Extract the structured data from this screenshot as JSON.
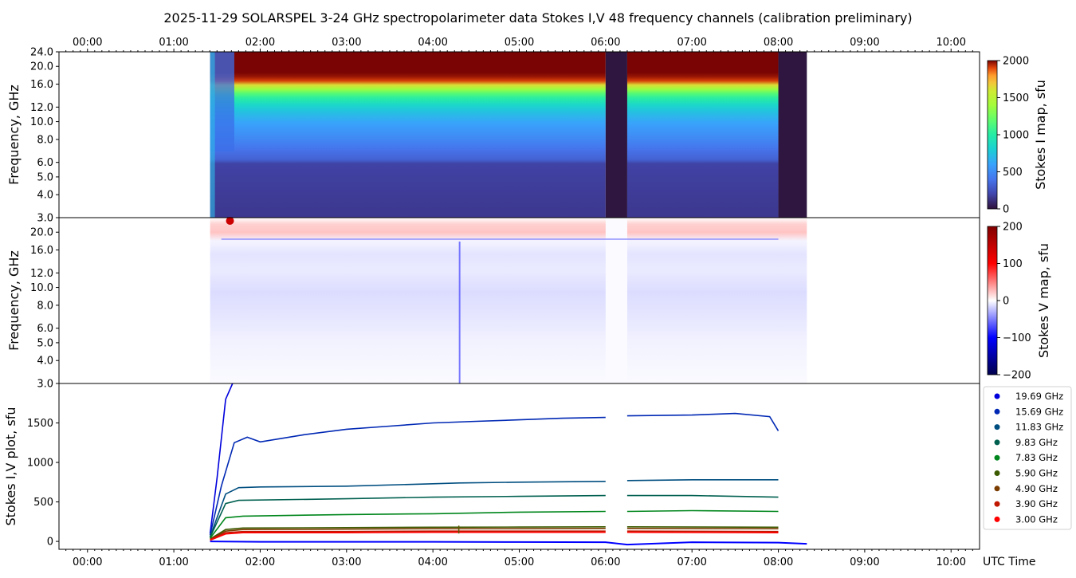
{
  "title": "2025-11-29  SOLARSPEL  3-24 GHz spectropolarimeter data   Stokes I,V   48 frequency channels   (calibration preliminary)",
  "x_unit_label": "UTC Time",
  "time_ticks": [
    "00:00",
    "01:00",
    "02:00",
    "03:00",
    "04:00",
    "05:00",
    "06:00",
    "07:00",
    "08:00",
    "09:00",
    "10:00"
  ],
  "chart_data": [
    {
      "type": "heatmap",
      "name": "stokes_i_map",
      "ylabel": "Frequency, GHz",
      "yticks": [
        "3.0",
        "4.0",
        "5.0",
        "6.0",
        "8.0",
        "10.0",
        "12.0",
        "16.0",
        "20.0",
        "24.0"
      ],
      "ylim_ghz": [
        3.0,
        24.0
      ],
      "xlim_hours": [
        -0.33,
        10.33
      ],
      "data_time_range_hours": [
        1.42,
        8.33
      ],
      "gaps_hours": [
        [
          6.0,
          6.25
        ],
        [
          8.0,
          8.33
        ]
      ],
      "colorbar": {
        "label": "Stokes I map, sfu",
        "ticks": [
          "2000",
          "1500",
          "1000",
          "500",
          "0"
        ],
        "range": [
          0,
          2000
        ],
        "colormap": "turbo"
      },
      "profile_sfu": [
        {
          "freq": 3.0,
          "value": 150
        },
        {
          "freq": 5.9,
          "value": 190
        },
        {
          "freq": 6.0,
          "value": 300
        },
        {
          "freq": 8.0,
          "value": 480
        },
        {
          "freq": 10.0,
          "value": 620
        },
        {
          "freq": 12.0,
          "value": 800
        },
        {
          "freq": 14.0,
          "value": 1100
        },
        {
          "freq": 15.5,
          "value": 1500
        },
        {
          "freq": 16.5,
          "value": 1900
        },
        {
          "freq": 18.0,
          "value": 2000
        },
        {
          "freq": 24.0,
          "value": 2000
        }
      ]
    },
    {
      "type": "heatmap",
      "name": "stokes_v_map",
      "ylabel": "Frequency, GHz",
      "yticks": [
        "3.0",
        "4.0",
        "5.0",
        "6.0",
        "8.0",
        "10.0",
        "12.0",
        "16.0",
        "20.0"
      ],
      "ylim_ghz": [
        3.0,
        24.0
      ],
      "colorbar": {
        "label": "Stokes V map, sfu",
        "ticks": [
          "200",
          "100",
          "0",
          "−100",
          "−200"
        ],
        "range": [
          -200,
          200
        ],
        "colormap": "seismic"
      }
    },
    {
      "type": "line",
      "name": "stokes_iv_plot",
      "ylabel": "Stokes I,V plot, sfu",
      "yticks": [
        "0",
        "500",
        "1000",
        "1500"
      ],
      "ylim": [
        -100,
        2000
      ],
      "xlim_hours": [
        -0.33,
        10.33
      ],
      "series": [
        {
          "name": "19.69 GHz",
          "color": "#0000dd",
          "points": [
            [
              1.42,
              100
            ],
            [
              1.5,
              800
            ],
            [
              1.6,
              1800
            ],
            [
              1.68,
              2000
            ]
          ]
        },
        {
          "name": "15.69 GHz",
          "color": "#0028b4",
          "points": [
            [
              1.42,
              80
            ],
            [
              1.55,
              700
            ],
            [
              1.7,
              1250
            ],
            [
              1.85,
              1320
            ],
            [
              2.0,
              1260
            ],
            [
              2.5,
              1350
            ],
            [
              3.0,
              1420
            ],
            [
              3.5,
              1460
            ],
            [
              4.0,
              1500
            ],
            [
              4.5,
              1520
            ],
            [
              5.0,
              1540
            ],
            [
              5.5,
              1560
            ],
            [
              6.0,
              1570
            ],
            [
              6.25,
              1590
            ],
            [
              7.0,
              1600
            ],
            [
              7.5,
              1620
            ],
            [
              7.9,
              1580
            ],
            [
              8.0,
              1400
            ]
          ]
        },
        {
          "name": "11.83 GHz",
          "color": "#004e80",
          "points": [
            [
              1.42,
              60
            ],
            [
              1.6,
              600
            ],
            [
              1.75,
              680
            ],
            [
              2.0,
              690
            ],
            [
              3.0,
              700
            ],
            [
              4.0,
              730
            ],
            [
              4.3,
              740
            ],
            [
              5.0,
              750
            ],
            [
              6.0,
              760
            ],
            [
              6.25,
              770
            ],
            [
              7.0,
              780
            ],
            [
              8.0,
              780
            ]
          ]
        },
        {
          "name": "9.83 GHz",
          "color": "#006050",
          "points": [
            [
              1.42,
              50
            ],
            [
              1.6,
              480
            ],
            [
              1.75,
              520
            ],
            [
              3.0,
              540
            ],
            [
              4.0,
              560
            ],
            [
              5.0,
              570
            ],
            [
              6.0,
              580
            ],
            [
              6.25,
              580
            ],
            [
              7.0,
              580
            ],
            [
              8.0,
              560
            ]
          ]
        },
        {
          "name": "7.83 GHz",
          "color": "#00861c",
          "points": [
            [
              1.42,
              40
            ],
            [
              1.6,
              300
            ],
            [
              1.8,
              320
            ],
            [
              3.0,
              340
            ],
            [
              4.0,
              350
            ],
            [
              5.0,
              370
            ],
            [
              6.0,
              380
            ],
            [
              6.25,
              380
            ],
            [
              7.0,
              390
            ],
            [
              8.0,
              380
            ]
          ]
        },
        {
          "name": "5.90 GHz",
          "color": "#3c5a00",
          "points": [
            [
              1.42,
              30
            ],
            [
              1.6,
              150
            ],
            [
              1.8,
              170
            ],
            [
              3.0,
              175
            ],
            [
              4.0,
              180
            ],
            [
              5.0,
              182
            ],
            [
              6.0,
              185
            ],
            [
              6.25,
              185
            ],
            [
              8.0,
              180
            ]
          ]
        },
        {
          "name": "4.90 GHz",
          "color": "#7a3c00",
          "points": [
            [
              1.42,
              25
            ],
            [
              1.6,
              130
            ],
            [
              1.8,
              150
            ],
            [
              3.0,
              155
            ],
            [
              4.0,
              160
            ],
            [
              5.0,
              160
            ],
            [
              6.0,
              165
            ],
            [
              6.25,
              165
            ],
            [
              8.0,
              160
            ]
          ]
        },
        {
          "name": "3.90 GHz",
          "color": "#c01800",
          "points": [
            [
              1.42,
              20
            ],
            [
              1.6,
              110
            ],
            [
              1.8,
              125
            ],
            [
              3.0,
              125
            ],
            [
              4.0,
              130
            ],
            [
              5.0,
              130
            ],
            [
              6.0,
              130
            ],
            [
              6.25,
              130
            ],
            [
              8.0,
              125
            ]
          ]
        },
        {
          "name": "3.00 GHz",
          "color": "#ff0000",
          "points": [
            [
              1.42,
              15
            ],
            [
              1.6,
              95
            ],
            [
              1.8,
              110
            ],
            [
              3.0,
              110
            ],
            [
              4.0,
              115
            ],
            [
              5.0,
              115
            ],
            [
              6.0,
              115
            ],
            [
              6.25,
              115
            ],
            [
              8.0,
              110
            ]
          ]
        }
      ],
      "v_series": {
        "color": "#0000ff",
        "points": [
          [
            1.42,
            0
          ],
          [
            2.0,
            -5
          ],
          [
            3.0,
            -5
          ],
          [
            4.0,
            -5
          ],
          [
            5.0,
            -8
          ],
          [
            6.0,
            -10
          ],
          [
            6.25,
            -40
          ],
          [
            7.0,
            -10
          ],
          [
            8.0,
            -15
          ],
          [
            8.33,
            -30
          ]
        ]
      },
      "legend": {
        "placement": "right"
      }
    }
  ]
}
